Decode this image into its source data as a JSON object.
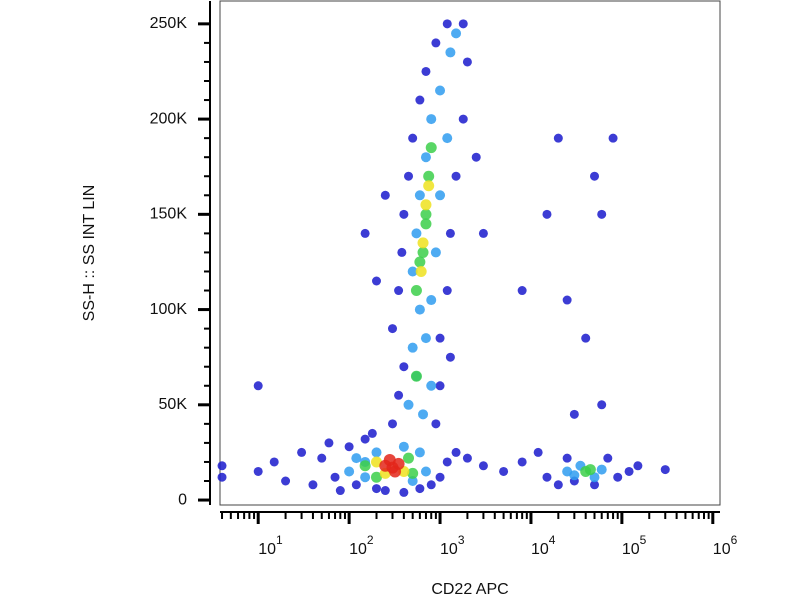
{
  "chart_data": {
    "type": "scatter",
    "x_label": "CD22 APC",
    "y_label": "SS-H :: SS INT LIN",
    "x_scale": "log",
    "xlim": [
      3.8,
      1200000
    ],
    "ylim": [
      -2600,
      262000
    ],
    "xticks": [
      {
        "value": 10,
        "label": "10",
        "exponent": "1"
      },
      {
        "value": 100,
        "label": "10",
        "exponent": "2"
      },
      {
        "value": 1000,
        "label": "10",
        "exponent": "3"
      },
      {
        "value": 10000,
        "label": "10",
        "exponent": "4"
      },
      {
        "value": 100000,
        "label": "10",
        "exponent": "5"
      },
      {
        "value": 1000000,
        "label": "10",
        "exponent": "6"
      }
    ],
    "xminorticks": [
      4,
      5,
      6,
      7,
      8,
      9,
      20,
      30,
      40,
      50,
      60,
      70,
      80,
      90,
      200,
      300,
      400,
      500,
      600,
      700,
      800,
      900,
      2000,
      3000,
      4000,
      5000,
      6000,
      7000,
      8000,
      9000,
      20000,
      30000,
      40000,
      50000,
      60000,
      70000,
      80000,
      90000,
      200000,
      300000,
      400000,
      500000,
      600000,
      700000,
      800000,
      900000
    ],
    "yticks": [
      0,
      {
        "value": 50000,
        "label": "50K"
      },
      {
        "value": 100000,
        "label": "100K"
      },
      {
        "value": 150000,
        "label": "150K"
      },
      {
        "value": 200000,
        "label": "200K"
      },
      {
        "value": 250000,
        "label": "250K"
      }
    ],
    "yminorticks": [
      10000,
      20000,
      30000,
      40000,
      60000,
      70000,
      80000,
      90000,
      110000,
      120000,
      130000,
      140000,
      160000,
      170000,
      180000,
      190000,
      210000,
      220000,
      230000,
      240000
    ],
    "series": [
      {
        "color": "#1a1acc",
        "x": [
          4,
          4,
          10,
          15,
          20,
          30,
          40,
          50,
          60,
          70,
          80,
          100,
          120,
          150,
          180,
          200,
          250,
          400,
          600,
          800,
          1000,
          1200,
          1500,
          2000,
          3000,
          5000,
          8000,
          12000,
          15000,
          20000,
          25000,
          30000,
          50000,
          70000,
          90000,
          120000,
          150000,
          300000,
          300,
          350,
          400,
          300,
          350,
          380,
          400,
          450,
          500,
          600,
          700,
          900,
          1200,
          1800,
          2000,
          1800,
          1500,
          1300,
          1200,
          1000,
          1000,
          900,
          1300,
          2500,
          3000,
          200,
          150,
          250,
          8000,
          15000,
          25000,
          50000,
          60000,
          80000,
          20000,
          40000,
          30000,
          60000,
          10
        ],
        "values": [
          18000,
          12000,
          15000,
          20000,
          10000,
          25000,
          8000,
          22000,
          30000,
          12000,
          5000,
          28000,
          8000,
          32000,
          35000,
          6000,
          5000,
          4000,
          6000,
          8000,
          12000,
          20000,
          25000,
          22000,
          18000,
          15000,
          20000,
          25000,
          12000,
          8000,
          22000,
          10000,
          8000,
          22000,
          12000,
          15000,
          18000,
          16000,
          40000,
          55000,
          70000,
          90000,
          110000,
          130000,
          150000,
          170000,
          190000,
          210000,
          225000,
          240000,
          250000,
          250000,
          230000,
          200000,
          170000,
          140000,
          110000,
          85000,
          60000,
          40000,
          75000,
          180000,
          140000,
          115000,
          140000,
          160000,
          110000,
          150000,
          105000,
          170000,
          150000,
          190000,
          190000,
          85000,
          45000,
          50000,
          60000
        ]
      },
      {
        "color": "#2f9cf0",
        "x": [
          100,
          120,
          150,
          200,
          500,
          600,
          700,
          150,
          400,
          450,
          550,
          500,
          600,
          500,
          550,
          600,
          700,
          800,
          1000,
          1300,
          1500,
          1200,
          1000,
          900,
          800,
          700,
          800,
          650,
          25000,
          35000,
          50000,
          60000,
          30000
        ],
        "values": [
          15000,
          22000,
          12000,
          25000,
          10000,
          25000,
          15000,
          20000,
          28000,
          50000,
          65000,
          80000,
          100000,
          120000,
          140000,
          160000,
          180000,
          200000,
          215000,
          235000,
          245000,
          190000,
          160000,
          130000,
          105000,
          85000,
          60000,
          45000,
          15000,
          18000,
          12000,
          16000,
          13000
        ]
      },
      {
        "color": "#3ccf4a",
        "x": [
          150,
          200,
          450,
          500,
          550,
          650,
          700,
          750,
          800,
          600,
          700,
          550,
          40000,
          45000
        ],
        "values": [
          18000,
          12000,
          22000,
          14000,
          110000,
          130000,
          150000,
          170000,
          185000,
          125000,
          145000,
          65000,
          15000,
          16000
        ]
      },
      {
        "color": "#eee21e",
        "x": [
          200,
          400,
          250,
          650,
          700,
          620,
          750
        ],
        "values": [
          20000,
          15000,
          14000,
          135000,
          155000,
          120000,
          165000
        ]
      },
      {
        "color": "#e3261a",
        "x": [
          250,
          300,
          350,
          280,
          320
        ],
        "values": [
          18000,
          17000,
          19000,
          21000,
          15000
        ]
      }
    ]
  }
}
